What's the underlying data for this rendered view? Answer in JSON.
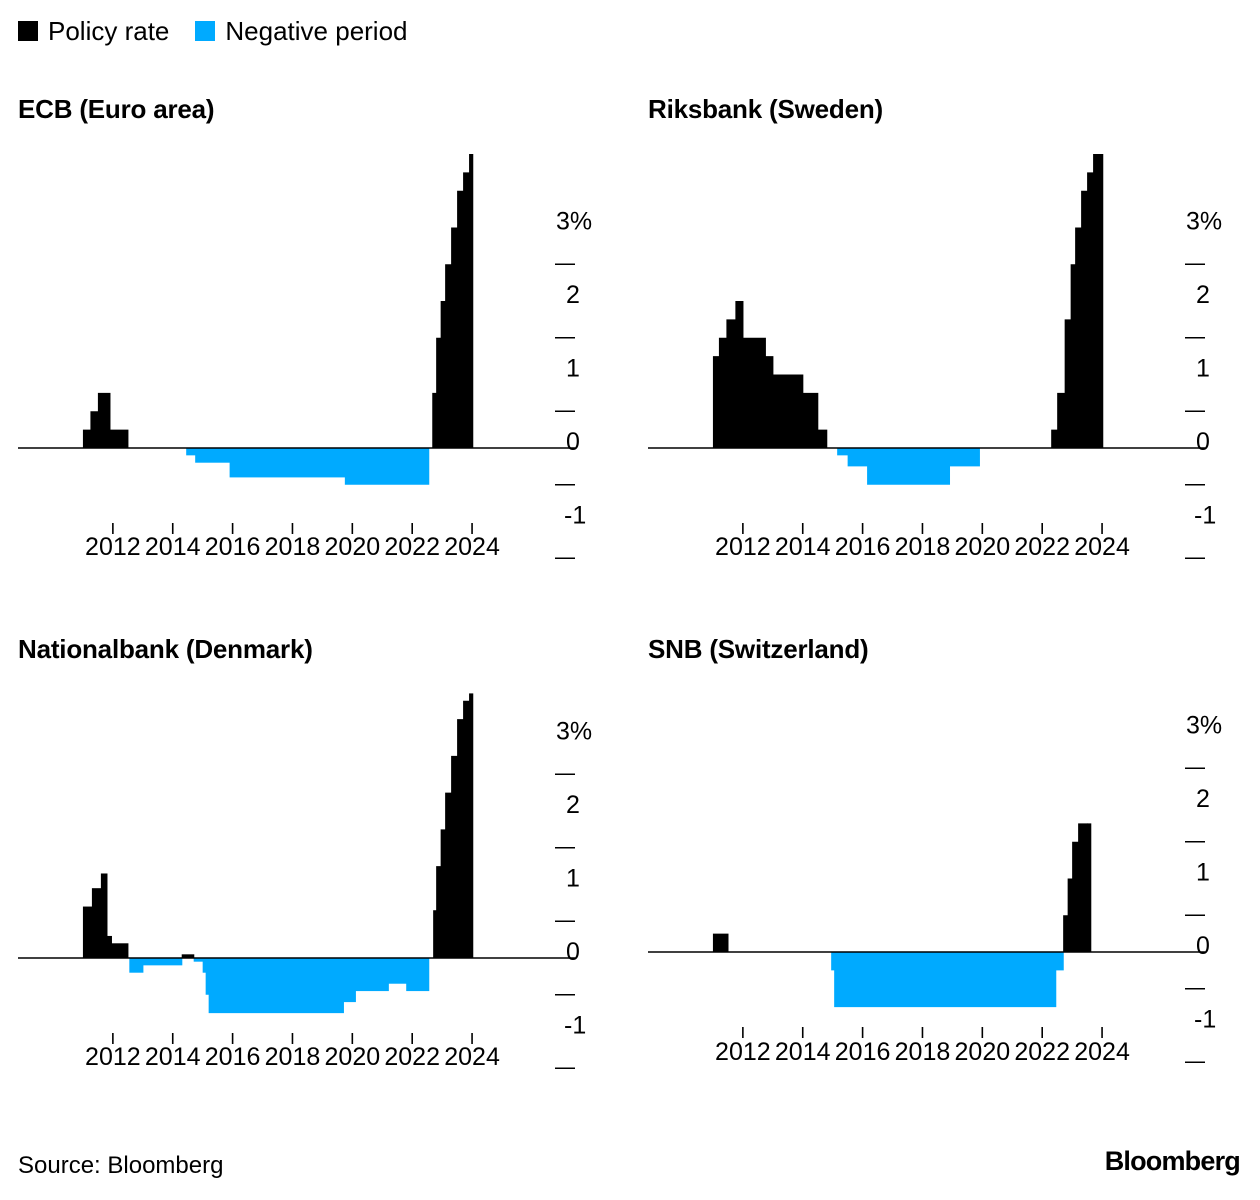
{
  "legend": [
    {
      "label": "Policy rate",
      "color": "#000000"
    },
    {
      "label": "Negative period",
      "color": "#00aaff"
    }
  ],
  "source": "Source: Bloomberg",
  "brand": "Bloomberg",
  "chart_data": [
    {
      "type": "area",
      "title": "ECB (Euro area)",
      "y_ticks": [
        "3%",
        "2",
        "1",
        "0",
        "-1"
      ],
      "ylim": [
        -1,
        4
      ],
      "x_ticks": [
        "2012",
        "2014",
        "2016",
        "2018",
        "2020",
        "2022",
        "2024"
      ],
      "xlim": [
        2010,
        2025
      ],
      "positive_color": "#000000",
      "negative_color": "#00aaff",
      "x": [
        2011.0,
        2011.25,
        2011.5,
        2011.9,
        2012.5,
        2014.45,
        2014.75,
        2015.9,
        2019.75,
        2022.55,
        2022.67,
        2022.8,
        2022.95,
        2023.1,
        2023.3,
        2023.5,
        2023.7,
        2023.9
      ],
      "y": [
        0.25,
        0.5,
        0.75,
        0.25,
        0.0,
        -0.1,
        -0.2,
        -0.4,
        -0.5,
        0.0,
        0.75,
        1.5,
        2.0,
        2.5,
        3.0,
        3.5,
        3.75,
        4.0
      ]
    },
    {
      "type": "area",
      "title": "Riksbank (Sweden)",
      "y_ticks": [
        "3%",
        "2",
        "1",
        "0",
        "-1"
      ],
      "ylim": [
        -1,
        4
      ],
      "x_ticks": [
        "2012",
        "2014",
        "2016",
        "2018",
        "2020",
        "2022",
        "2024"
      ],
      "xlim": [
        2010,
        2025
      ],
      "positive_color": "#000000",
      "negative_color": "#00aaff",
      "x": [
        2011.0,
        2011.2,
        2011.45,
        2011.75,
        2012.0,
        2012.75,
        2013.0,
        2014.0,
        2014.5,
        2014.8,
        2015.15,
        2015.5,
        2016.15,
        2018.9,
        2019.9,
        2022.3,
        2022.5,
        2022.75,
        2022.95,
        2023.1,
        2023.3,
        2023.5,
        2023.7,
        2023.9
      ],
      "y": [
        1.25,
        1.5,
        1.75,
        2.0,
        1.5,
        1.25,
        1.0,
        0.75,
        0.25,
        0.0,
        -0.1,
        -0.25,
        -0.5,
        -0.25,
        0.0,
        0.25,
        0.75,
        1.75,
        2.5,
        3.0,
        3.5,
        3.75,
        4.0,
        4.0
      ]
    },
    {
      "type": "area",
      "title": "Nationalbank (Denmark)",
      "y_ticks": [
        "3%",
        "2",
        "1",
        "0",
        "-1"
      ],
      "ylim": [
        -1,
        4
      ],
      "x_ticks": [
        "2012",
        "2014",
        "2016",
        "2018",
        "2020",
        "2022",
        "2024"
      ],
      "xlim": [
        2010,
        2025
      ],
      "positive_color": "#000000",
      "negative_color": "#00aaff",
      "x": [
        2011.0,
        2011.3,
        2011.6,
        2011.8,
        2011.95,
        2012.5,
        2012.55,
        2013.0,
        2014.3,
        2014.7,
        2015.0,
        2015.1,
        2015.2,
        2019.7,
        2020.1,
        2021.2,
        2021.8,
        2022.55,
        2022.7,
        2022.8,
        2022.95,
        2023.1,
        2023.3,
        2023.5,
        2023.7,
        2023.9
      ],
      "y": [
        0.7,
        0.95,
        1.15,
        0.3,
        0.2,
        0.0,
        -0.2,
        -0.1,
        0.05,
        -0.05,
        -0.2,
        -0.5,
        -0.75,
        -0.6,
        -0.45,
        -0.35,
        -0.45,
        0.0,
        0.65,
        1.25,
        1.75,
        2.25,
        2.75,
        3.25,
        3.5,
        3.6
      ]
    },
    {
      "type": "area",
      "title": "SNB (Switzerland)",
      "y_ticks": [
        "3%",
        "2",
        "1",
        "0",
        "-1"
      ],
      "ylim": [
        -1,
        4
      ],
      "x_ticks": [
        "2012",
        "2014",
        "2016",
        "2018",
        "2020",
        "2022",
        "2024"
      ],
      "xlim": [
        2010,
        2025
      ],
      "positive_color": "#000000",
      "negative_color": "#00aaff",
      "x": [
        2011.0,
        2011.5,
        2014.95,
        2015.05,
        2022.45,
        2022.7,
        2022.85,
        2023.0,
        2023.2,
        2023.5
      ],
      "y": [
        0.25,
        0.0,
        -0.25,
        -0.75,
        -0.25,
        0.5,
        1.0,
        1.5,
        1.75,
        1.75
      ]
    }
  ]
}
